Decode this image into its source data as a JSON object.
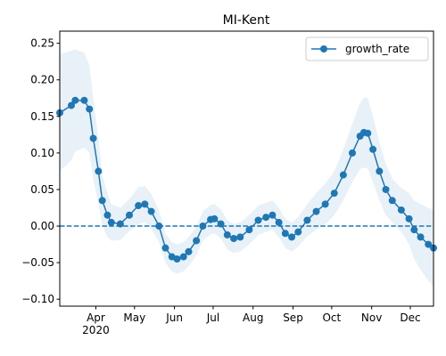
{
  "chart_data": {
    "type": "line",
    "title": "MI-Kent",
    "x": [
      63,
      72,
      75,
      82,
      86,
      89,
      93,
      96,
      100,
      103,
      110,
      117,
      124,
      129,
      134,
      140,
      145,
      150,
      154,
      159,
      163,
      169,
      174,
      180,
      183,
      188,
      193,
      198,
      203,
      210,
      217,
      223,
      228,
      233,
      238,
      243,
      248,
      255,
      262,
      269,
      276,
      283,
      290,
      296,
      299,
      302,
      306,
      311,
      316,
      321,
      328,
      334,
      338,
      343,
      349,
      353
    ],
    "series": [
      {
        "name": "growth_rate",
        "color": "#1f77b4",
        "marker": "o",
        "values": [
          0.155,
          0.165,
          0.172,
          0.172,
          0.16,
          0.12,
          0.075,
          0.035,
          0.015,
          0.005,
          0.003,
          0.015,
          0.028,
          0.03,
          0.02,
          0,
          -0.03,
          -0.042,
          -0.045,
          -0.042,
          -0.035,
          -0.02,
          0,
          0.009,
          0.01,
          0.003,
          -0.012,
          -0.017,
          -0.015,
          -0.005,
          0.008,
          0.012,
          0.015,
          0.005,
          -0.01,
          -0.015,
          -0.008,
          0.008,
          0.02,
          0.03,
          0.045,
          0.07,
          0.1,
          0.123,
          0.128,
          0.127,
          0.105,
          0.075,
          0.05,
          0.035,
          0.022,
          0.01,
          -0.005,
          -0.015,
          -0.025,
          -0.03
        ]
      }
    ],
    "band": {
      "color": "#1f77b4",
      "opacity": 0.1,
      "lower": [
        0.075,
        0.09,
        0.102,
        0.107,
        0.1,
        0.065,
        0.03,
        0,
        -0.015,
        -0.02,
        -0.019,
        -0.007,
        0.003,
        0.005,
        -0.004,
        -0.022,
        -0.05,
        -0.062,
        -0.065,
        -0.062,
        -0.055,
        -0.04,
        -0.02,
        -0.011,
        -0.01,
        -0.017,
        -0.032,
        -0.037,
        -0.035,
        -0.025,
        -0.012,
        -0.008,
        -0.005,
        -0.015,
        -0.03,
        -0.035,
        -0.028,
        -0.014,
        -0.005,
        0.002,
        0.015,
        0.035,
        0.06,
        0.078,
        0.08,
        0.079,
        0.06,
        0.035,
        0.015,
        0.005,
        -0.008,
        -0.025,
        -0.045,
        -0.06,
        -0.075,
        -0.082
      ],
      "upper": [
        0.235,
        0.24,
        0.242,
        0.237,
        0.22,
        0.175,
        0.12,
        0.07,
        0.045,
        0.03,
        0.025,
        0.037,
        0.053,
        0.055,
        0.044,
        0.022,
        -0.01,
        -0.022,
        -0.025,
        -0.022,
        -0.015,
        0,
        0.02,
        0.029,
        0.03,
        0.023,
        0.008,
        0.003,
        0.005,
        0.015,
        0.028,
        0.032,
        0.035,
        0.025,
        0.01,
        0.005,
        0.012,
        0.03,
        0.045,
        0.058,
        0.075,
        0.105,
        0.14,
        0.168,
        0.176,
        0.175,
        0.15,
        0.115,
        0.085,
        0.065,
        0.052,
        0.045,
        0.035,
        0.03,
        0.025,
        0.022
      ]
    },
    "reference_line": {
      "value": 0,
      "color": "#1f77b4",
      "style": "dashed"
    },
    "xlim": [
      63,
      353
    ],
    "xticks": [
      {
        "value": 91,
        "label": "Apr\n2020"
      },
      {
        "value": 121,
        "label": "May"
      },
      {
        "value": 152,
        "label": "Jun"
      },
      {
        "value": 182,
        "label": "Jul"
      },
      {
        "value": 213,
        "label": "Aug"
      },
      {
        "value": 244,
        "label": "Sep"
      },
      {
        "value": 274,
        "label": "Oct"
      },
      {
        "value": 305,
        "label": "Nov"
      },
      {
        "value": 335,
        "label": "Dec"
      }
    ],
    "ylim": [
      -0.1095,
      0.2666
    ],
    "yticks": [
      {
        "value": -0.1,
        "label": "−0.10"
      },
      {
        "value": -0.05,
        "label": "−0.05"
      },
      {
        "value": 0,
        "label": "0.00"
      },
      0.05,
      {
        "value": 0.1,
        "label": "0.10"
      },
      0.15,
      {
        "value": 0.2,
        "label": "0.20"
      },
      0.25
    ],
    "legend": "upper right"
  }
}
